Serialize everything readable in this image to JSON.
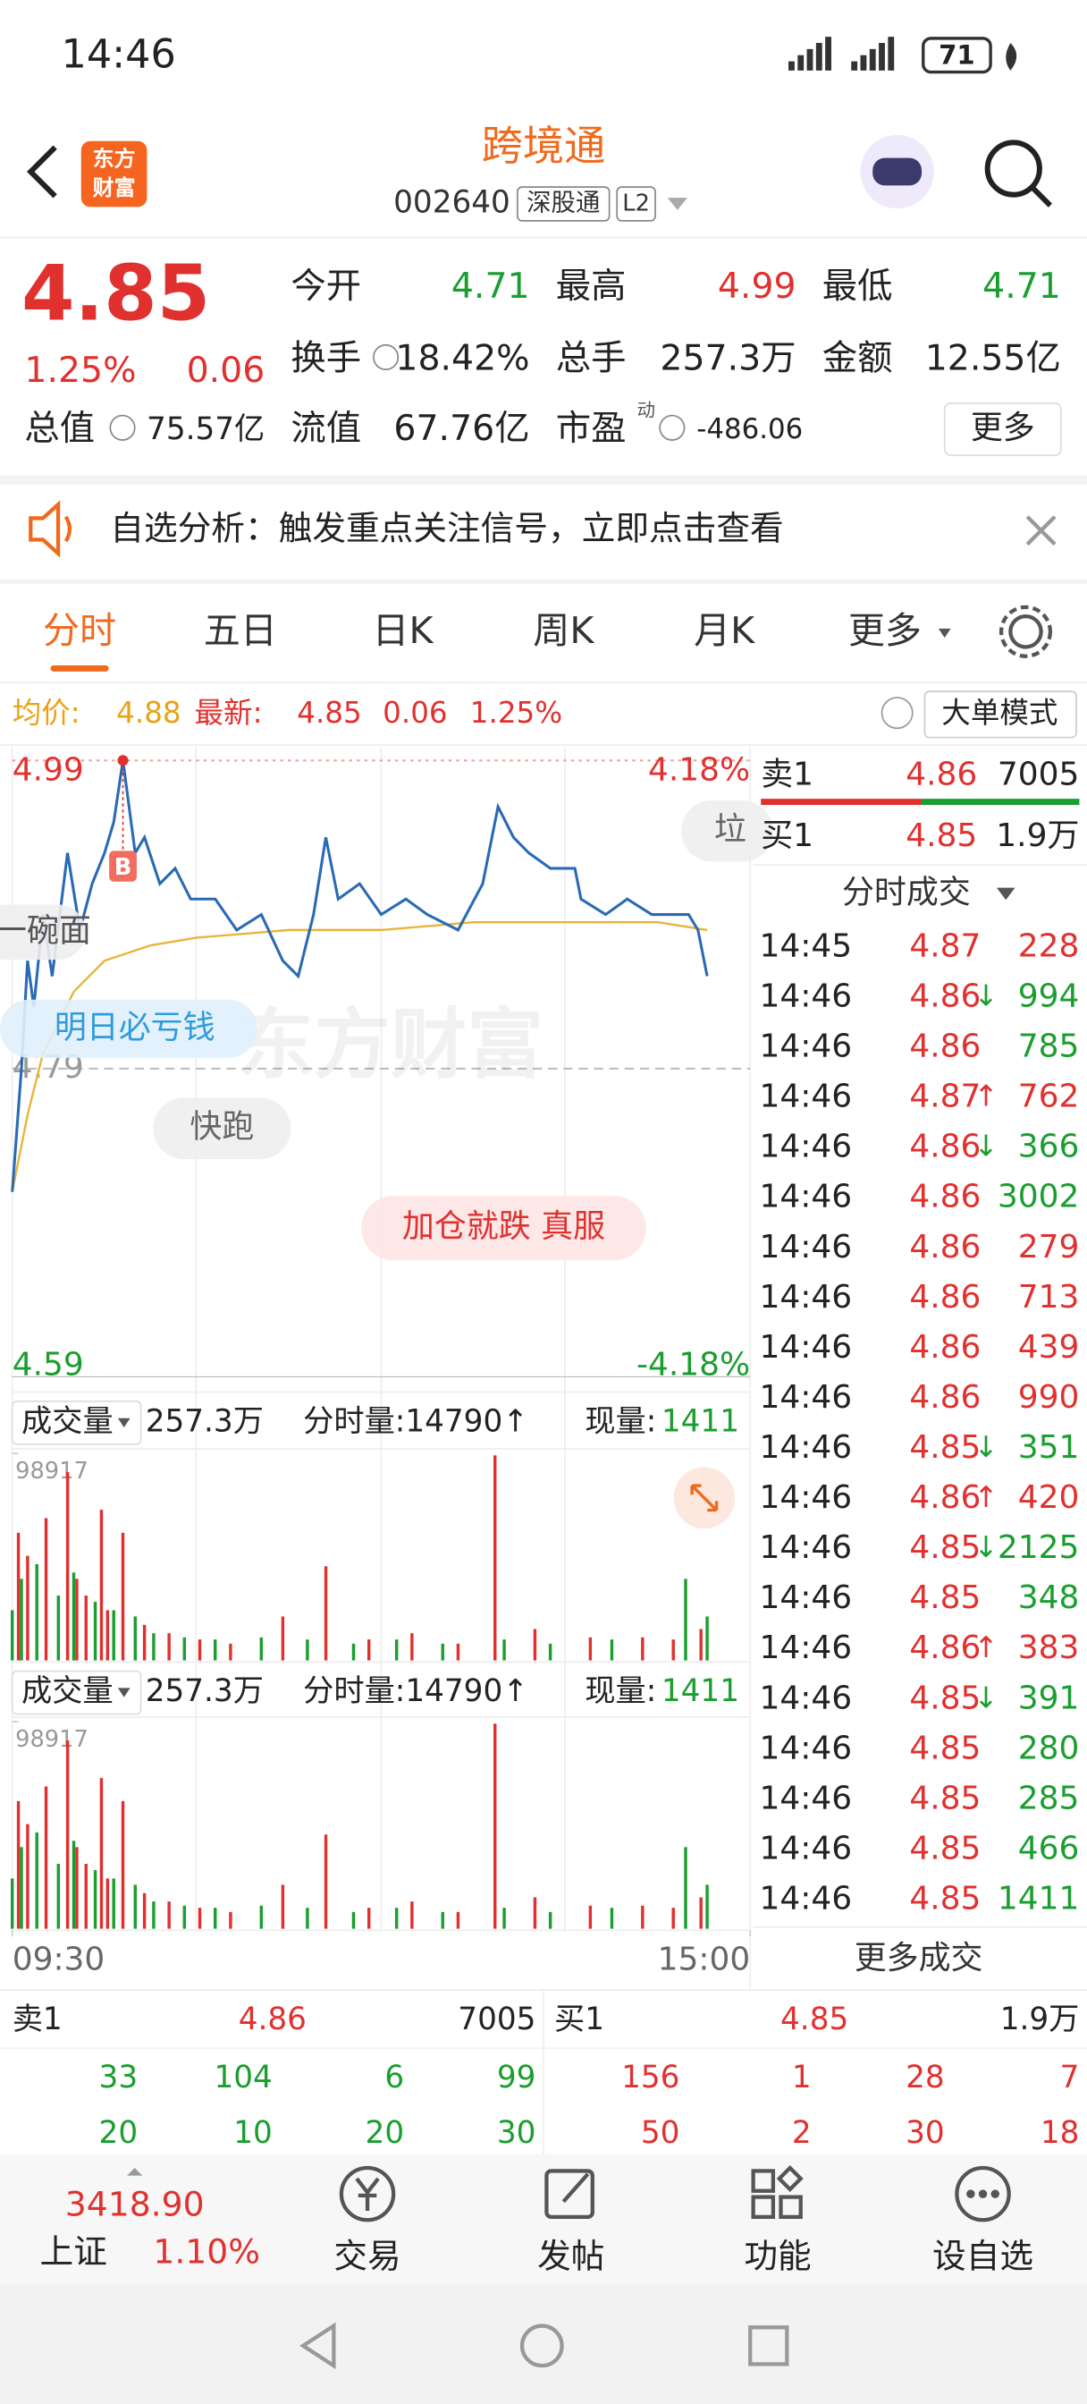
{
  "status_bar": {
    "time": "14:46",
    "battery": "71"
  },
  "header": {
    "logo": [
      "东方",
      "财富"
    ],
    "title": "跨境通",
    "code": "002640",
    "market": "深股通",
    "level": "L2"
  },
  "quote": {
    "price": "4.85",
    "change_pct": "1.25%",
    "change": "0.06",
    "pe_tag": "动",
    "more": "更多",
    "fields": [
      {
        "label": "今开",
        "value": "4.71",
        "color": "#1a9e2f"
      },
      {
        "label": "最高",
        "value": "4.99",
        "color": "#e0312f"
      },
      {
        "label": "最低",
        "value": "4.71",
        "color": "#1a9e2f"
      },
      {
        "label": "换手",
        "value": "18.42%",
        "color": "#222222"
      },
      {
        "label": "总手",
        "value": "257.3万",
        "color": "#222222"
      },
      {
        "label": "金额",
        "value": "12.55亿",
        "color": "#222222"
      },
      {
        "label": "总值",
        "value": "75.57亿",
        "color": "#222222"
      },
      {
        "label": "流值",
        "value": "67.76亿",
        "color": "#222222"
      },
      {
        "label": "市盈",
        "value": "-486.06",
        "color": "#222222"
      }
    ]
  },
  "notice": {
    "text": "自选分析：触发重点关注信号，立即点击查看"
  },
  "tabs": {
    "items": [
      "分时",
      "五日",
      "日K",
      "周K",
      "月K",
      "更多"
    ],
    "active": 0
  },
  "info": {
    "avg_label": "均价:",
    "avg": "4.88",
    "last_label": "最新:",
    "last": "4.85",
    "change": "0.06",
    "change_pct": "1.25%",
    "mode": "大单模式"
  },
  "comments": [
    "一碗面",
    "明日必亏钱",
    "快跑",
    "加仓就跌 真服",
    "垃"
  ],
  "watermark": "东方财富",
  "chart_data": [
    {
      "type": "line",
      "xlim": [
        0,
        240
      ],
      "xticks": [
        {
          "value": 0,
          "label": "09:30"
        },
        {
          "value": 240,
          "label": "15:00"
        }
      ],
      "ylim": [
        4.59,
        4.99
      ],
      "yticks": [
        4.59,
        4.79,
        4.99
      ],
      "y2lim": [
        -4.18,
        4.18
      ],
      "y2ticks": [
        {
          "value": -4.18,
          "label": "-4.18%"
        },
        {
          "value": 4.18,
          "label": "4.18%"
        }
      ],
      "marker": "B",
      "series": [
        {
          "color": "#2a6ab5",
          "x": [
            0,
            3,
            5,
            7,
            10,
            13,
            18,
            22,
            26,
            30,
            33,
            36,
            40,
            43,
            48,
            53,
            58,
            66,
            73,
            81,
            88,
            93,
            98,
            102,
            106,
            113,
            120,
            128,
            135,
            145,
            153,
            158,
            163,
            168,
            175,
            183,
            185,
            193,
            200,
            208,
            215,
            220,
            223,
            226
          ],
          "values": [
            4.71,
            4.79,
            4.86,
            4.83,
            4.89,
            4.85,
            4.93,
            4.88,
            4.91,
            4.93,
            4.95,
            4.99,
            4.93,
            4.94,
            4.91,
            4.92,
            4.9,
            4.9,
            4.88,
            4.89,
            4.86,
            4.85,
            4.89,
            4.94,
            4.9,
            4.91,
            4.89,
            4.9,
            4.89,
            4.88,
            4.91,
            4.96,
            4.94,
            4.93,
            4.92,
            4.92,
            4.9,
            4.89,
            4.9,
            4.89,
            4.89,
            4.89,
            4.88,
            4.85
          ]
        },
        {
          "color": "#e8b53a",
          "x": [
            0,
            5,
            10,
            20,
            30,
            45,
            60,
            90,
            120,
            150,
            180,
            210,
            226
          ],
          "values": [
            4.71,
            4.76,
            4.8,
            4.84,
            4.86,
            4.87,
            4.875,
            4.88,
            4.88,
            4.885,
            4.885,
            4.885,
            4.88
          ]
        }
      ]
    },
    {
      "type": "bar",
      "xlim": [
        0,
        240
      ],
      "ylim": [
        0,
        98917
      ],
      "yticks": [
        98917
      ],
      "series": [
        {
          "color": "#e0312f",
          "x": [
            2,
            5,
            11,
            18,
            21,
            24,
            29,
            31,
            36,
            43,
            51,
            61,
            71,
            88,
            102,
            116,
            130,
            145,
            157,
            170,
            188,
            205,
            215,
            224
          ],
          "values": [
            61000,
            50000,
            68000,
            90000,
            39000,
            31000,
            72000,
            24000,
            61000,
            17000,
            13000,
            10000,
            8000,
            21000,
            45000,
            10000,
            13000,
            8000,
            98000,
            15000,
            11000,
            11000,
            10000,
            15000
          ]
        },
        {
          "color": "#1a9e2f",
          "x": [
            0,
            3,
            8,
            15,
            20,
            27,
            33,
            40,
            46,
            56,
            66,
            81,
            96,
            111,
            125,
            140,
            160,
            175,
            195,
            219,
            226
          ],
          "values": [
            24000,
            39000,
            46000,
            31000,
            42000,
            28000,
            24000,
            21000,
            13000,
            11000,
            10000,
            11000,
            10000,
            8000,
            10000,
            8000,
            10000,
            8000,
            10000,
            39000,
            21000
          ]
        }
      ]
    }
  ],
  "volume_header": {
    "label": "成交量",
    "total": "257.3万",
    "period": "分时量:14790↑",
    "now_label": "现量:",
    "now": "1411"
  },
  "order": {
    "sell": {
      "label": "卖1",
      "price": "4.86",
      "volume": "7005"
    },
    "buy": {
      "label": "买1",
      "price": "4.85",
      "volume": "1.9万"
    }
  },
  "trades": {
    "title": "分时成交",
    "more": "更多成交",
    "rows": [
      {
        "time": "14:45",
        "price": "4.87",
        "volume": "228",
        "color": "#e0312f"
      },
      {
        "time": "14:46",
        "price": "4.86",
        "arrow": "↓",
        "volume": "994",
        "color": "#1a9e2f"
      },
      {
        "time": "14:46",
        "price": "4.86",
        "volume": "785",
        "color": "#1a9e2f"
      },
      {
        "time": "14:46",
        "price": "4.87",
        "arrow": "↑",
        "volume": "762",
        "color": "#e0312f"
      },
      {
        "time": "14:46",
        "price": "4.86",
        "arrow": "↓",
        "volume": "366",
        "color": "#1a9e2f"
      },
      {
        "time": "14:46",
        "price": "4.86",
        "volume": "3002",
        "color": "#1a9e2f"
      },
      {
        "time": "14:46",
        "price": "4.86",
        "volume": "279",
        "color": "#e0312f"
      },
      {
        "time": "14:46",
        "price": "4.86",
        "volume": "713",
        "color": "#e0312f"
      },
      {
        "time": "14:46",
        "price": "4.86",
        "volume": "439",
        "color": "#e0312f"
      },
      {
        "time": "14:46",
        "price": "4.86",
        "volume": "990",
        "color": "#e0312f"
      },
      {
        "time": "14:46",
        "price": "4.85",
        "arrow": "↓",
        "volume": "351",
        "color": "#1a9e2f"
      },
      {
        "time": "14:46",
        "price": "4.86",
        "arrow": "↑",
        "volume": "420",
        "color": "#e0312f"
      },
      {
        "time": "14:46",
        "price": "4.85",
        "arrow": "↓",
        "volume": "2125",
        "color": "#1a9e2f"
      },
      {
        "time": "14:46",
        "price": "4.85",
        "volume": "348",
        "color": "#1a9e2f"
      },
      {
        "time": "14:46",
        "price": "4.86",
        "arrow": "↑",
        "volume": "383",
        "color": "#e0312f"
      },
      {
        "time": "14:46",
        "price": "4.85",
        "arrow": "↓",
        "volume": "391",
        "color": "#1a9e2f"
      },
      {
        "time": "14:46",
        "price": "4.85",
        "volume": "280",
        "color": "#1a9e2f"
      },
      {
        "time": "14:46",
        "price": "4.85",
        "volume": "285",
        "color": "#1a9e2f"
      },
      {
        "time": "14:46",
        "price": "4.85",
        "volume": "466",
        "color": "#1a9e2f"
      },
      {
        "time": "14:46",
        "price": "4.85",
        "volume": "1411",
        "color": "#1a9e2f"
      }
    ]
  },
  "depth": {
    "sell": [
      [
        33,
        104,
        6,
        99
      ],
      [
        20,
        10,
        20,
        30
      ]
    ],
    "buy": [
      [
        156,
        1,
        28,
        7
      ],
      [
        50,
        2,
        30,
        18
      ]
    ]
  },
  "nav": {
    "index_value": "3418.90",
    "index_name": "上证",
    "index_change": "1.10%",
    "items": [
      "交易",
      "发帖",
      "功能",
      "设自选"
    ]
  }
}
